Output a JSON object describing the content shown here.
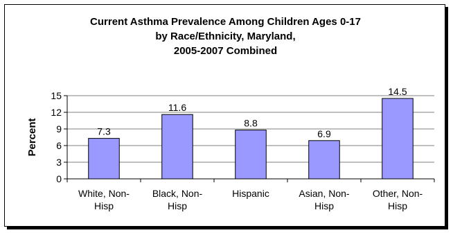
{
  "chart_data": {
    "type": "bar",
    "title_lines": [
      "Current Asthma Prevalence Among Children Ages 0-17",
      "by Race/Ethnicity, Maryland,",
      "2005-2007 Combined"
    ],
    "xlabel": "",
    "ylabel": "Percent",
    "ylim": [
      0,
      15
    ],
    "yticks": [
      "0",
      "3",
      "6",
      "9",
      "12",
      "15"
    ],
    "categories": [
      [
        "White, Non-",
        "Hisp"
      ],
      [
        "Black, Non-",
        "Hisp"
      ],
      [
        "Hispanic"
      ],
      [
        "Asian, Non-",
        "Hisp"
      ],
      [
        "Other, Non-",
        "Hisp"
      ]
    ],
    "values": [
      7.3,
      11.6,
      8.8,
      6.9,
      14.5
    ],
    "value_labels": [
      "7.3",
      "11.6",
      "8.8",
      "6.9",
      "14.5"
    ],
    "grid": true,
    "legend": "none",
    "bar_color": "#9999ff",
    "bar_edge_color": "#000000",
    "grid_color": "#808080"
  }
}
